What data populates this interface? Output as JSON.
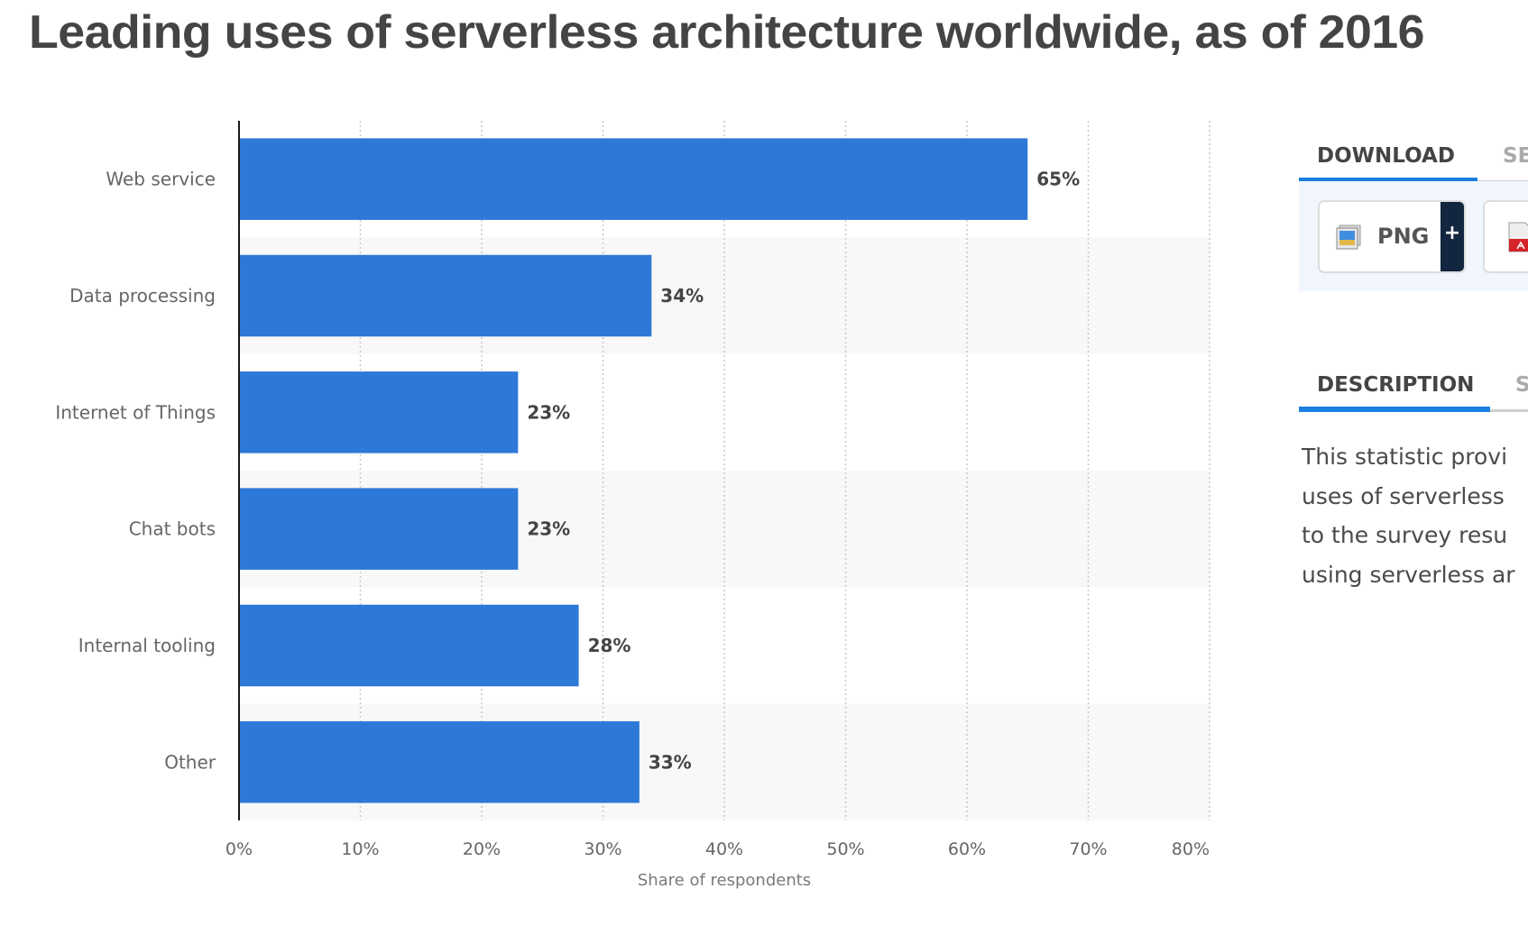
{
  "page": {
    "title": "Leading uses of serverless architecture worldwide, as of 2016"
  },
  "colors": {
    "bar": "#2e78d8",
    "band": "#f8f8f8",
    "gridline": "#c8c8c8",
    "axis": "#1a1a1a",
    "tab_active_underline": "#1a7fe0"
  },
  "chart_data": {
    "type": "bar",
    "orientation": "horizontal",
    "title": "Leading uses of serverless architecture worldwide, as of 2016",
    "categories": [
      "Web service",
      "Data processing",
      "Internet of Things",
      "Chat bots",
      "Internal tooling",
      "Other"
    ],
    "values": [
      65,
      34,
      23,
      23,
      28,
      33
    ],
    "data_labels": [
      "65%",
      "34%",
      "23%",
      "23%",
      "28%",
      "33%"
    ],
    "xlabel": "Share of respondents",
    "ylabel": "",
    "xlim": [
      0,
      80
    ],
    "xticks": [
      0,
      10,
      20,
      30,
      40,
      50,
      60,
      70,
      80
    ],
    "xtick_labels": [
      "0%",
      "10%",
      "20%",
      "30%",
      "40%",
      "50%",
      "60%",
      "70%",
      "80%"
    ],
    "grid": "vertical dotted",
    "legend": "none"
  },
  "side_panel": {
    "download_tabs": [
      {
        "label": "DOWNLOAD",
        "active": true
      },
      {
        "label": "SE",
        "active": false
      }
    ],
    "download_buttons": [
      {
        "label": "PNG",
        "icon": "image-file-icon",
        "extra": "+"
      },
      {
        "label": "",
        "icon": "pdf-file-icon"
      }
    ],
    "info_tabs": [
      {
        "label": "DESCRIPTION",
        "active": true
      },
      {
        "label": "S",
        "active": false
      }
    ],
    "description_lines": [
      "This statistic provi",
      "uses of serverless",
      "to the survey resu",
      "using serverless ar"
    ]
  }
}
